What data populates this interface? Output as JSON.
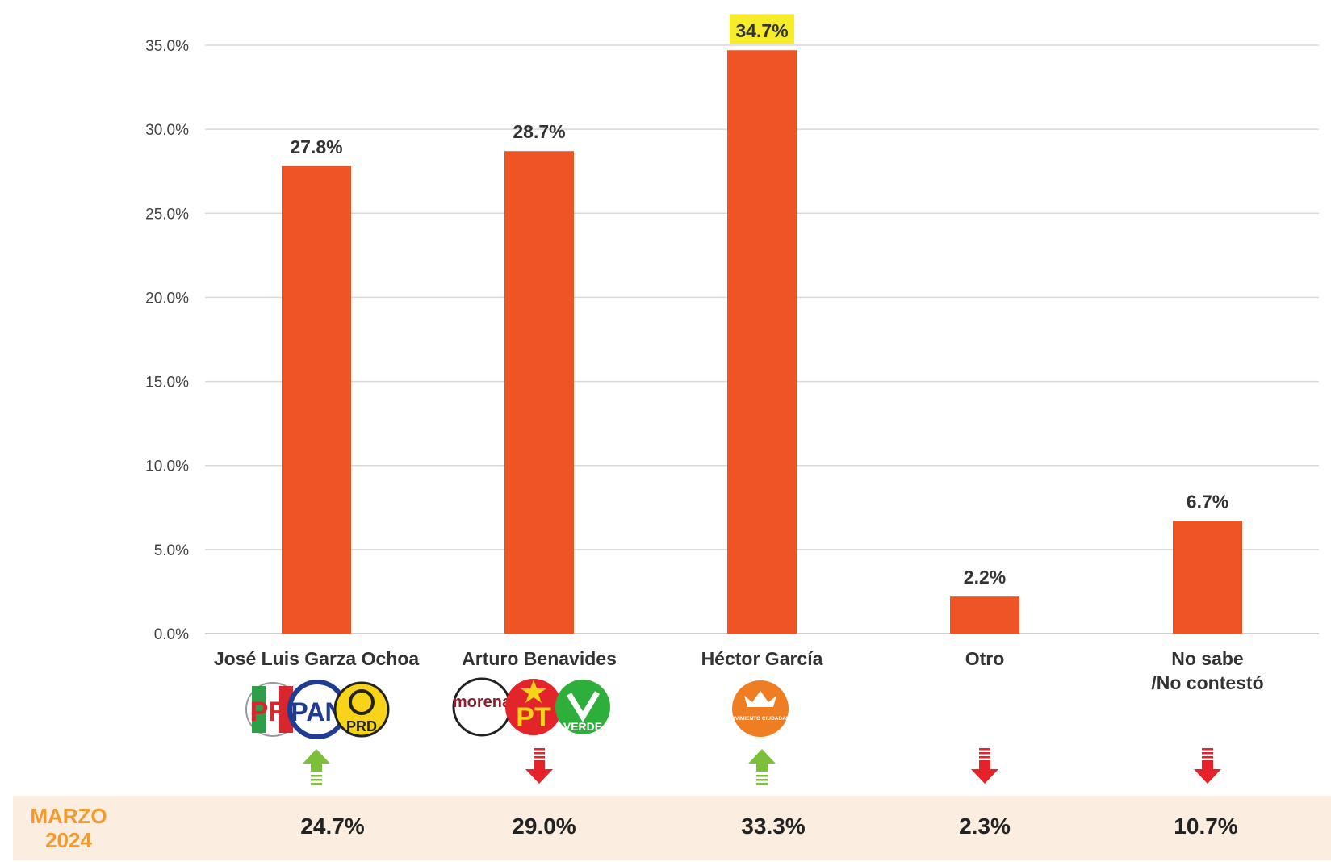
{
  "chart_data": {
    "type": "bar",
    "categories": [
      "José Luis Garza Ochoa",
      "Arturo Benavides",
      "Héctor García",
      "Otro",
      "No sabe /No contestó"
    ],
    "category_lines": [
      [
        "José Luis Garza Ochoa"
      ],
      [
        "Arturo Benavides"
      ],
      [
        "Héctor García"
      ],
      [
        "Otro"
      ],
      [
        "No sabe",
        "/No contestó"
      ]
    ],
    "values": [
      27.8,
      28.7,
      34.7,
      2.2,
      6.7
    ],
    "value_labels": [
      "27.8%",
      "28.7%",
      "34.7%",
      "2.2%",
      "6.7%"
    ],
    "highlighted_index": 2,
    "ylim": [
      0,
      35
    ],
    "yticks": [
      "0.0%",
      "5.0%",
      "10.0%",
      "15.0%",
      "20.0%",
      "25.0%",
      "30.0%",
      "35.0%"
    ],
    "ytick_values": [
      0,
      5,
      10,
      15,
      20,
      25,
      30,
      35
    ],
    "grid": true,
    "bar_color": "#ee5424",
    "highlight_color": "#f6ec2a",
    "trend": [
      "up",
      "down",
      "up",
      "down",
      "down"
    ],
    "trend_colors": {
      "up": "#7bbf3a",
      "down": "#e5222a"
    }
  },
  "party_logos": [
    [
      "PRI",
      "PAN",
      "PRD"
    ],
    [
      "morena",
      "PT",
      "VERDE"
    ],
    [
      "MOVIMIENTO CIUDADANO"
    ],
    [],
    []
  ],
  "comparison": {
    "label_line1": "MARZO",
    "label_line2": "2024",
    "values": [
      "24.7%",
      "29.0%",
      "33.3%",
      "2.3%",
      "10.7%"
    ]
  }
}
